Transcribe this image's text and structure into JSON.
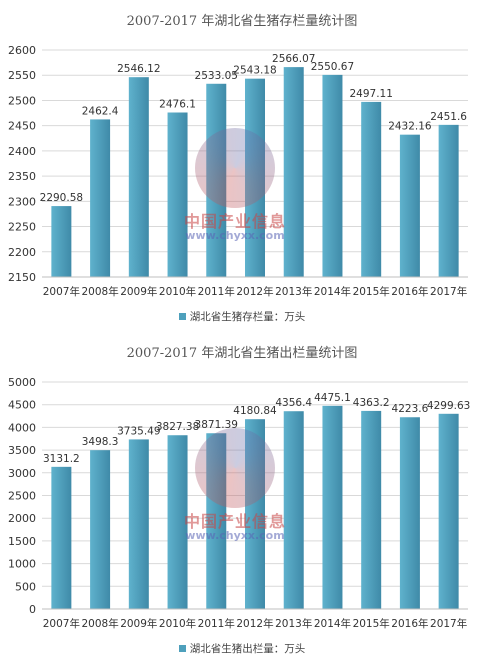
{
  "watermark": {
    "brand_cn": "中国产业信息",
    "url": "www.chyxx.com"
  },
  "colors": {
    "bar_light": "#5fb2cd",
    "bar_dark": "#3f8aa8",
    "grid": "#d9d9d9",
    "text": "#333333"
  },
  "chart_data": [
    {
      "type": "bar",
      "title": "2007-2017 年湖北省生猪存栏量统计图",
      "categories": [
        "2007年",
        "2008年",
        "2009年",
        "2010年",
        "2011年",
        "2012年",
        "2013年",
        "2014年",
        "2015年",
        "2016年",
        "2017年"
      ],
      "series": [
        {
          "name": "湖北省生猪存栏量：万头",
          "values": [
            2290.58,
            2462.4,
            2546.12,
            2476.1,
            2533.05,
            2543.18,
            2566.07,
            2550.67,
            2497.11,
            2432.16,
            2451.6
          ],
          "labels": [
            "2290.58",
            "2462.4",
            "2546.12",
            "2476.1",
            "2533.05",
            "2543.18",
            "2566.07",
            "2550.67",
            "2497.11",
            "2432.16",
            "2451.6"
          ]
        }
      ],
      "ylim": [
        2150,
        2600
      ],
      "yticks": [
        "2150",
        "2200",
        "2250",
        "2300",
        "2350",
        "2400",
        "2450",
        "2500",
        "2550",
        "2600"
      ],
      "grid": true,
      "legend": "bottom",
      "legend_label": "湖北省生猪存栏量：万头"
    },
    {
      "type": "bar",
      "title": "2007-2017 年湖北省生猪出栏量统计图",
      "categories": [
        "2007年",
        "2008年",
        "2009年",
        "2010年",
        "2011年",
        "2012年",
        "2013年",
        "2014年",
        "2015年",
        "2016年",
        "2017年"
      ],
      "series": [
        {
          "name": "湖北省生猪出栏量：万头",
          "values": [
            3131.2,
            3498.3,
            3735.49,
            3827.38,
            3871.39,
            4180.84,
            4356.4,
            4475.1,
            4363.2,
            4223.6,
            4299.63
          ],
          "labels": [
            "3131.2",
            "3498.3",
            "3735.49",
            "3827.38",
            "3871.39",
            "4180.84",
            "4356.4",
            "4475.1",
            "4363.2",
            "4223.6",
            "4299.63"
          ]
        }
      ],
      "ylim": [
        0,
        5000
      ],
      "yticks": [
        "0",
        "500",
        "1000",
        "1500",
        "2000",
        "2500",
        "3000",
        "3500",
        "4000",
        "4500",
        "5000"
      ],
      "grid": true,
      "legend": "bottom",
      "legend_label": "湖北省生猪出栏量：万头"
    }
  ]
}
